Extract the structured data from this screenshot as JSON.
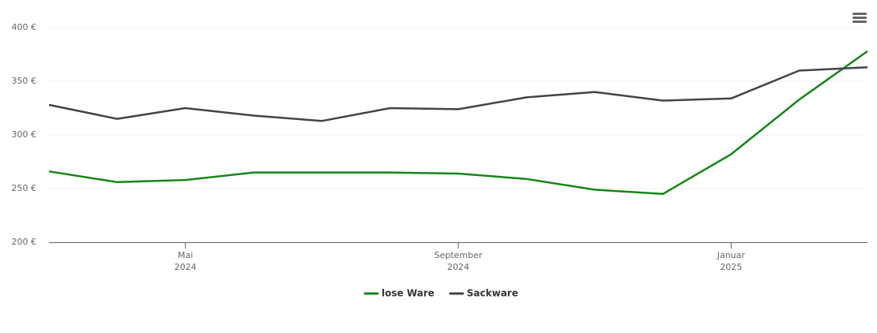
{
  "chart_data": {
    "type": "line",
    "x": [
      "2024-03",
      "2024-04",
      "2024-05",
      "2024-06",
      "2024-07",
      "2024-08",
      "2024-09",
      "2024-10",
      "2024-11",
      "2024-12",
      "2025-01",
      "2025-02",
      "2025-03"
    ],
    "series": [
      {
        "name": "lose Ware",
        "color": "#168516",
        "values": [
          266,
          256,
          258,
          265,
          265,
          265,
          264,
          259,
          249,
          245,
          282,
          333,
          378
        ]
      },
      {
        "name": "Sackware",
        "color": "#434348",
        "values": [
          328,
          315,
          325,
          318,
          313,
          325,
          324,
          335,
          340,
          332,
          334,
          360,
          363
        ]
      }
    ],
    "xlim": [
      "2024-03",
      "2025-03"
    ],
    "xticks": [
      {
        "value": "2024-05",
        "label": "Mai 2024"
      },
      {
        "value": "2024-09",
        "label": "September 2024"
      },
      {
        "value": "2025-01",
        "label": "Januar 2025"
      }
    ],
    "ylim": [
      200,
      400
    ],
    "yticks": [
      {
        "value": 200,
        "label": "200 €"
      },
      {
        "value": 250,
        "label": "250 €"
      },
      {
        "value": 300,
        "label": "300 €"
      },
      {
        "value": 350,
        "label": "350 €"
      },
      {
        "value": 400,
        "label": "400 €"
      }
    ],
    "grid": true,
    "legend": "bottom"
  }
}
